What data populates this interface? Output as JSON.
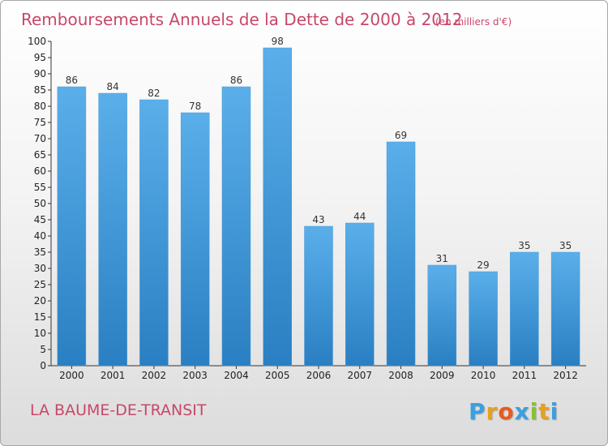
{
  "chart_data": {
    "type": "bar",
    "title": "Remboursements Annuels de la Dette de 2000 à 2012",
    "subtitle": "(en milliers d'€)",
    "categories": [
      "2000",
      "2001",
      "2002",
      "2003",
      "2004",
      "2005",
      "2006",
      "2007",
      "2008",
      "2009",
      "2010",
      "2011",
      "2012"
    ],
    "values": [
      86,
      84,
      82,
      78,
      86,
      98,
      43,
      44,
      69,
      31,
      29,
      35,
      35
    ],
    "ylim": [
      0,
      100
    ],
    "ytick_step": 5,
    "xlabel": "",
    "ylabel": "",
    "grid": false,
    "bar_color_top": "#5aafea",
    "bar_color_bottom": "#2a7fc2"
  },
  "footer": {
    "commune": "LA BAUME-DE-TRANSIT"
  },
  "logo": {
    "letters": [
      "P",
      "r",
      "o",
      "x",
      "i",
      "t",
      "i"
    ],
    "colors": [
      "#3aa0e0",
      "#e8a020",
      "#e85a20",
      "#3aa0e0",
      "#8ac030",
      "#e8a020",
      "#3aa0e0"
    ]
  }
}
